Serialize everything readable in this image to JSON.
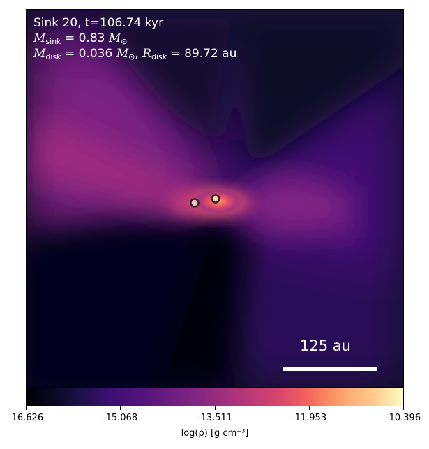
{
  "annotation": {
    "line1": "Sink 20, t=106.74 kyr",
    "line2_symbol": "M",
    "line2_sub": "sink",
    "line2_value": " = 0.83 ",
    "line2_unit_symbol": "M",
    "line2_unit_sub": "⊙",
    "line3_symbol": "M",
    "line3_sub": "disk",
    "line3_value": " = 0.036 ",
    "line3_unit_symbol": "M",
    "line3_unit_sub": "⊙",
    "line3_sep": ", ",
    "line3_symbol2": "R",
    "line3_sub2": "disk",
    "line3_value2": " = 89.72 au"
  },
  "scale_bar": {
    "label": "125 au"
  },
  "colorbar": {
    "colormap": "magma",
    "ticks": [
      "-16.626",
      "-15.068",
      "-13.511",
      "-11.953",
      "-10.396"
    ],
    "label": "log(ρ) [g cm⁻³]"
  },
  "sinks": [
    {
      "color": "#f4c6b8"
    },
    {
      "color": "#fdd8a8"
    }
  ]
}
